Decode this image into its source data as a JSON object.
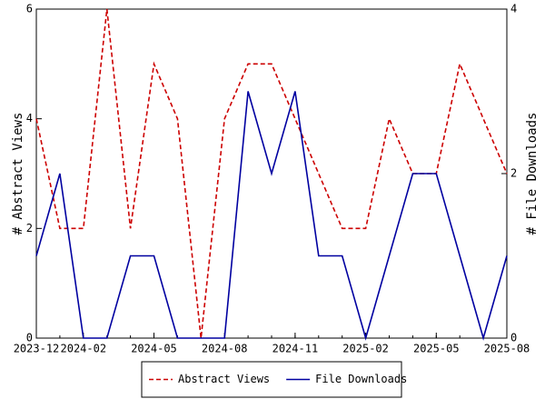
{
  "chart_data": {
    "type": "line",
    "x": [
      "2023-12",
      "2024-01",
      "2024-02",
      "2024-03",
      "2024-04",
      "2024-05",
      "2024-06",
      "2024-07",
      "2024-08",
      "2024-09",
      "2024-10",
      "2024-11",
      "2024-12",
      "2025-01",
      "2025-02",
      "2025-03",
      "2025-04",
      "2025-05",
      "2025-06",
      "2025-07",
      "2025-08"
    ],
    "xlim": [
      "2023-12",
      "2025-08"
    ],
    "xticks": [
      "2023-12",
      "2024-02",
      "2024-05",
      "2024-08",
      "2024-11",
      "2025-02",
      "2025-05",
      "2025-08"
    ],
    "ylabel": "# Abstract Views",
    "y2label": "# File Downloads",
    "ylim": [
      0,
      6
    ],
    "yticks": [
      0,
      2,
      4,
      6
    ],
    "y2lim": [
      0,
      4
    ],
    "y2ticks": [
      0,
      2,
      4
    ],
    "legend": "bottom",
    "series": [
      {
        "name": "Abstract Views",
        "color": "#cc0000",
        "dashed": true,
        "values": [
          4,
          2,
          2,
          6,
          2,
          5,
          4,
          0,
          4,
          5,
          5,
          4,
          3,
          2,
          2,
          4,
          3,
          3,
          5,
          4,
          3
        ]
      },
      {
        "name": "File Downloads",
        "color": "#0000a0",
        "dashed": false,
        "axis": "y2",
        "values": [
          1,
          2,
          0,
          0,
          1,
          1,
          0,
          0,
          0,
          3,
          2,
          3,
          1,
          1,
          0,
          1,
          2,
          2,
          1,
          0,
          1
        ]
      }
    ]
  }
}
